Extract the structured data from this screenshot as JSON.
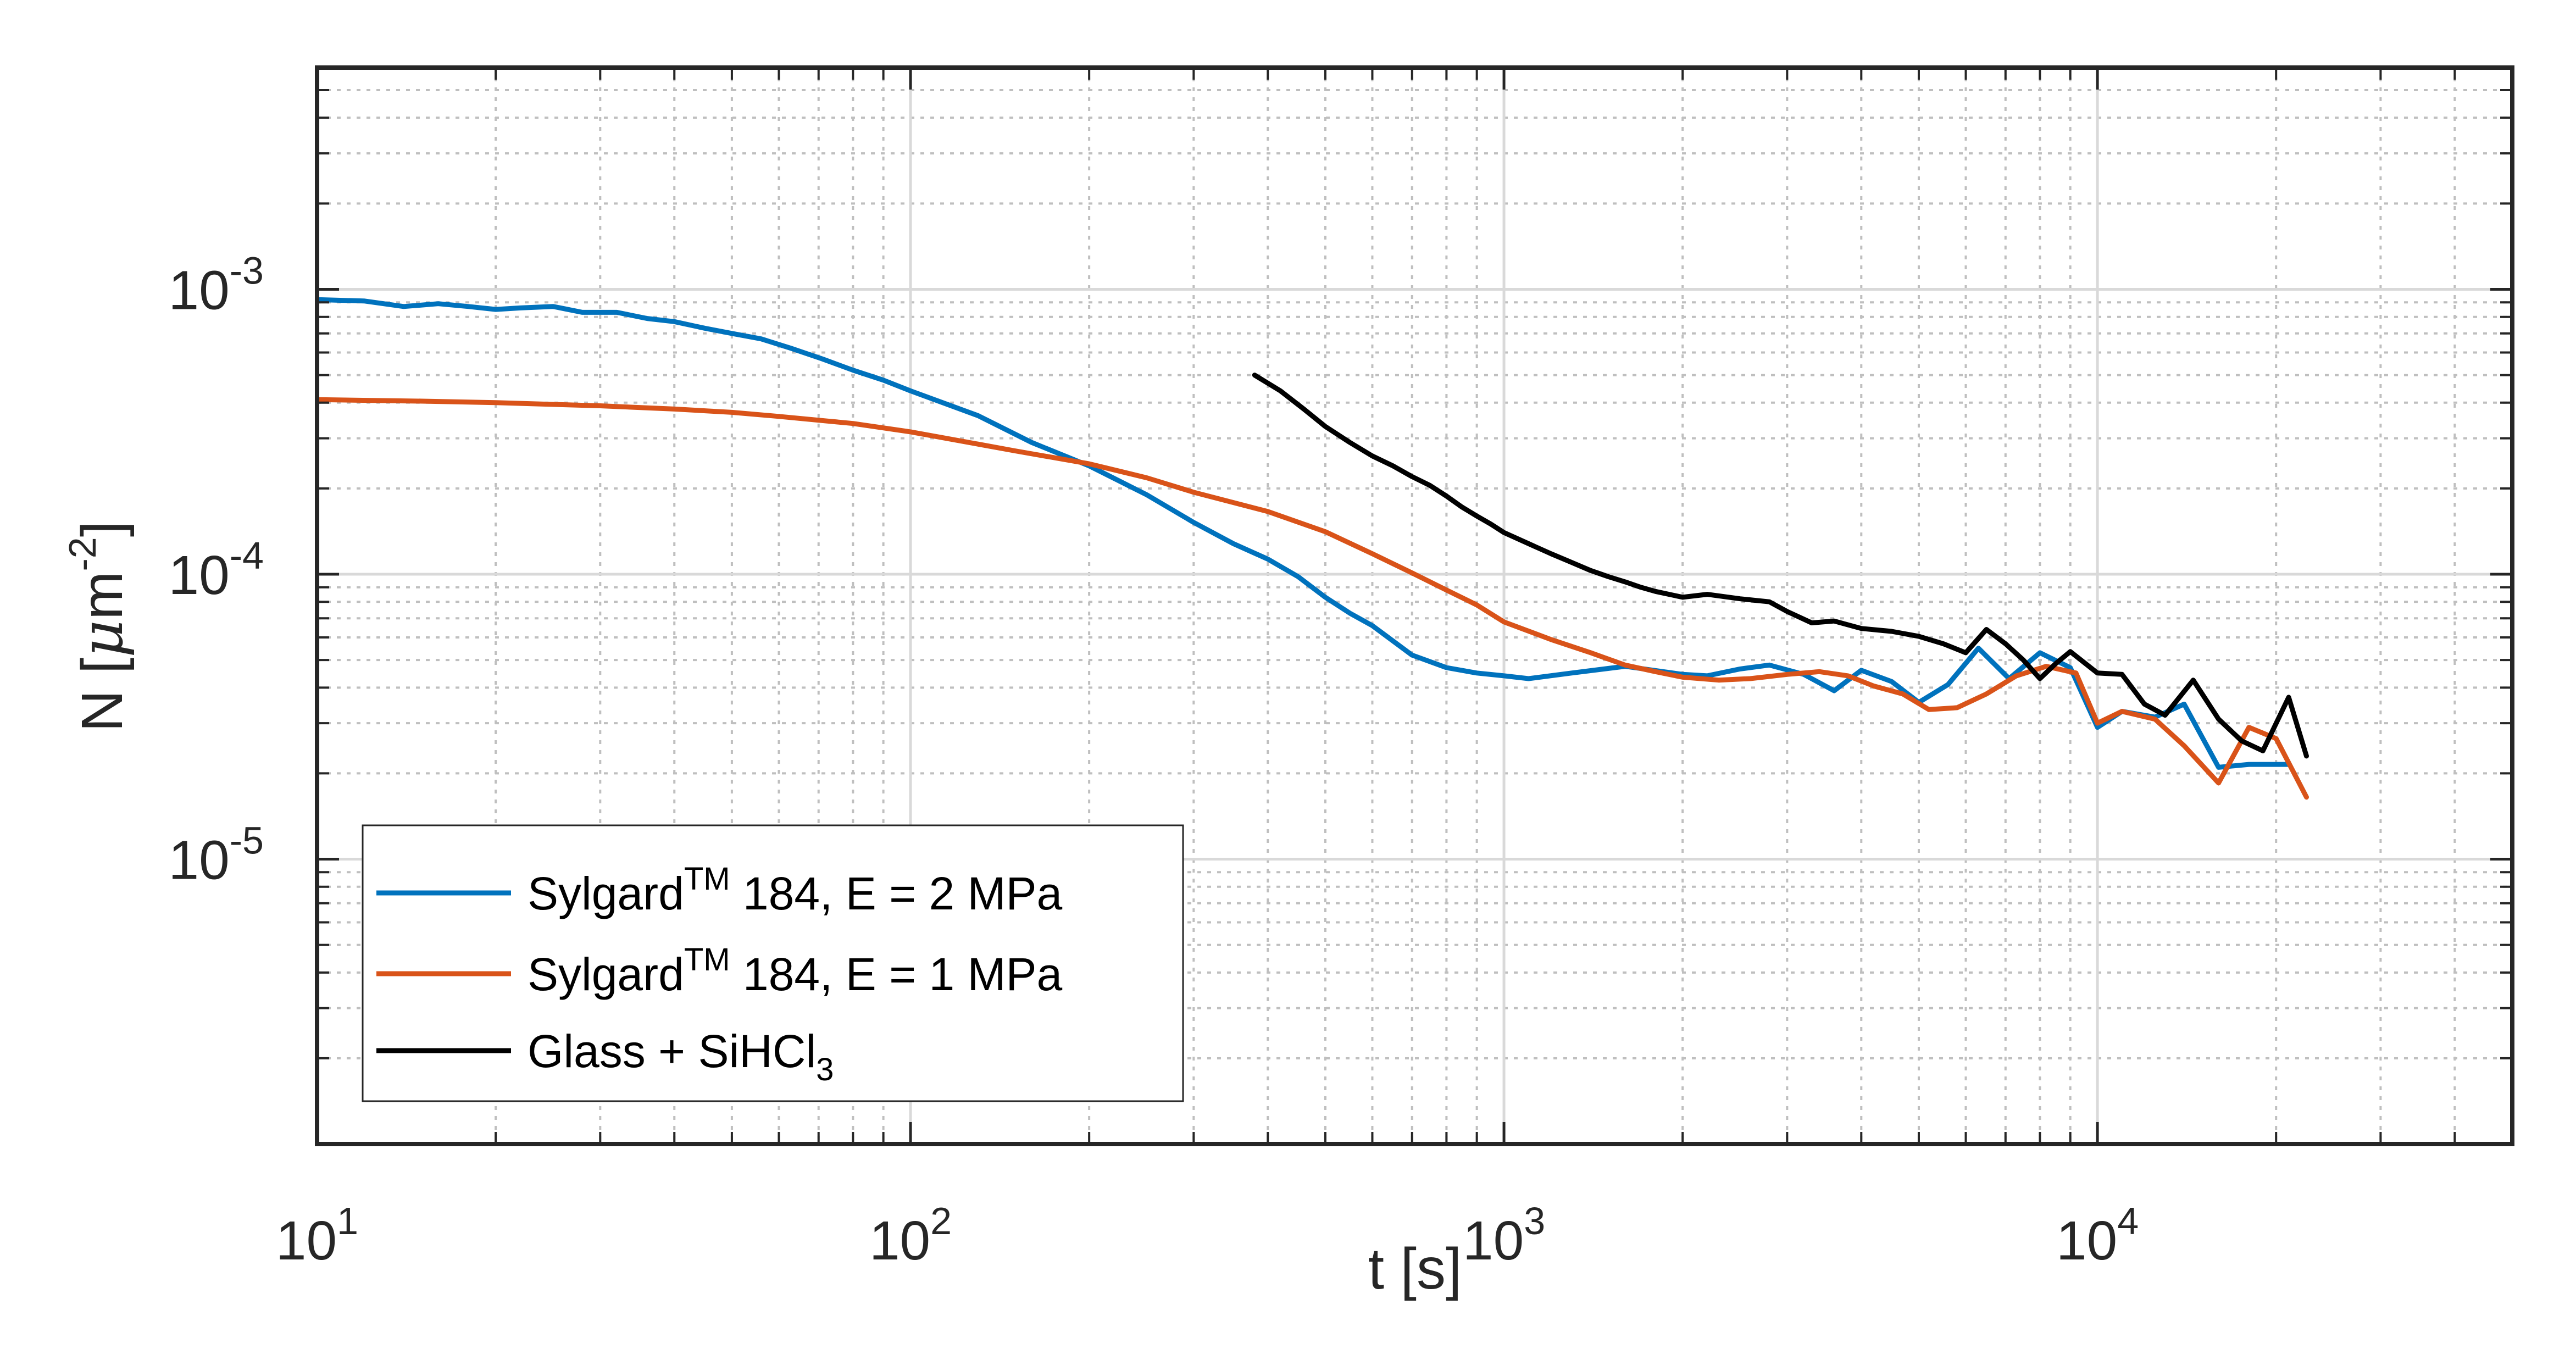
{
  "chart_data": {
    "type": "line",
    "xscale": "log",
    "yscale": "log",
    "xlabel": "t [s]",
    "ylabel": {
      "prefix": "N [",
      "mu": "μ",
      "unit": "m",
      "exp": "-2",
      "suffix": "]"
    },
    "xlim": [
      10,
      50000
    ],
    "ylim": [
      1e-06,
      0.006
    ],
    "grid": true,
    "x_ticks": [
      {
        "value": 10,
        "base": "10",
        "exp": "1"
      },
      {
        "value": 100,
        "base": "10",
        "exp": "2"
      },
      {
        "value": 1000,
        "base": "10",
        "exp": "3"
      },
      {
        "value": 10000,
        "base": "10",
        "exp": "4"
      }
    ],
    "y_ticks": [
      {
        "value": 1e-05,
        "base": "10",
        "exp": "-5"
      },
      {
        "value": 0.0001,
        "base": "10",
        "exp": "-4"
      },
      {
        "value": 0.001,
        "base": "10",
        "exp": "-3"
      }
    ],
    "legend": {
      "placement": "bottom-left"
    },
    "series": [
      {
        "name": "SylgardTM 184, E = 2 MPa",
        "label_parts": [
          "Sylgard",
          "TM",
          " 184, E = 2 MPa"
        ],
        "color": "#0072BD",
        "x": [
          10,
          12,
          14,
          16,
          18,
          20,
          22,
          25,
          28,
          32,
          36,
          40,
          45,
          50,
          56,
          63,
          71,
          80,
          90,
          100,
          130,
          160,
          200,
          250,
          300,
          350,
          400,
          450,
          500,
          550,
          600,
          700,
          800,
          900,
          1000,
          1100,
          1300,
          1600,
          2000,
          2200,
          2500,
          2800,
          3200,
          3600,
          4000,
          4500,
          5000,
          5600,
          6300,
          7100,
          8000,
          9000,
          10000,
          11000,
          12500,
          14000,
          16000,
          18000,
          21000
        ],
        "y": [
          0.00092,
          0.00091,
          0.00087,
          0.00089,
          0.00087,
          0.00085,
          0.00086,
          0.00087,
          0.00083,
          0.00083,
          0.00079,
          0.00077,
          0.00073,
          0.0007,
          0.00067,
          0.00062,
          0.00057,
          0.00052,
          0.00048,
          0.00044,
          0.00036,
          0.00029,
          0.00024,
          0.00019,
          0.000152,
          0.000128,
          0.000113,
          9.8e-05,
          8.3e-05,
          7.3e-05,
          6.6e-05,
          5.2e-05,
          4.7e-05,
          4.5e-05,
          4.4e-05,
          4.3e-05,
          4.5e-05,
          4.75e-05,
          4.45e-05,
          4.4e-05,
          4.65e-05,
          4.8e-05,
          4.45e-05,
          3.9e-05,
          4.6e-05,
          4.2e-05,
          3.55e-05,
          4.1e-05,
          5.5e-05,
          4.3e-05,
          5.3e-05,
          4.7e-05,
          2.9e-05,
          3.3e-05,
          3.15e-05,
          3.5e-05,
          2.1e-05,
          2.15e-05,
          2.15e-05
        ]
      },
      {
        "name": "SylgardTM 184, E = 1 MPa",
        "label_parts": [
          "Sylgard",
          "TM",
          " 184, E = 1 MPa"
        ],
        "color": "#D95319",
        "x": [
          10,
          15,
          20,
          30,
          40,
          50,
          60,
          80,
          100,
          120,
          150,
          200,
          250,
          300,
          400,
          500,
          600,
          700,
          800,
          900,
          1000,
          1200,
          1400,
          1600,
          1800,
          2000,
          2300,
          2600,
          3000,
          3400,
          3800,
          4200,
          4700,
          5200,
          5800,
          6500,
          7300,
          8200,
          9200,
          10000,
          11000,
          12500,
          14000,
          16000,
          18000,
          20000,
          22500
        ],
        "y": [
          0.00041,
          0.000405,
          0.0004,
          0.00039,
          0.00038,
          0.00037,
          0.000358,
          0.000338,
          0.000316,
          0.000295,
          0.000271,
          0.000244,
          0.000218,
          0.000194,
          0.000166,
          0.000141,
          0.000118,
          0.000101,
          8.8e-05,
          7.8e-05,
          6.8e-05,
          5.9e-05,
          5.3e-05,
          4.8e-05,
          4.55e-05,
          4.35e-05,
          4.25e-05,
          4.3e-05,
          4.45e-05,
          4.55e-05,
          4.4e-05,
          4.05e-05,
          3.8e-05,
          3.35e-05,
          3.4e-05,
          3.8e-05,
          4.4e-05,
          4.75e-05,
          4.5e-05,
          3e-05,
          3.3e-05,
          3.1e-05,
          2.5e-05,
          1.85e-05,
          2.9e-05,
          2.65e-05,
          1.65e-05
        ]
      },
      {
        "name": "Glass + SiHCl3",
        "label_parts": [
          "Glass + SiHCl",
          "3",
          ""
        ],
        "color": "#000000",
        "x": [
          380,
          420,
          460,
          500,
          550,
          600,
          650,
          700,
          750,
          800,
          850,
          900,
          950,
          1000,
          1100,
          1200,
          1300,
          1400,
          1500,
          1600,
          1700,
          1800,
          2000,
          2200,
          2500,
          2800,
          3000,
          3300,
          3600,
          4000,
          4500,
          5000,
          5500,
          6000,
          6500,
          7000,
          7500,
          8000,
          8500,
          9000,
          10000,
          11000,
          12000,
          13000,
          14500,
          16000,
          17500,
          19000,
          21000,
          22500
        ],
        "y": [
          0.0005,
          0.00044,
          0.00038,
          0.00033,
          0.00029,
          0.00026,
          0.00024,
          0.00022,
          0.000205,
          0.000188,
          0.000172,
          0.00016,
          0.00015,
          0.00014,
          0.000128,
          0.000118,
          0.00011,
          0.000103,
          9.8e-05,
          9.4e-05,
          9e-05,
          8.7e-05,
          8.3e-05,
          8.5e-05,
          8.2e-05,
          8e-05,
          7.4e-05,
          6.75e-05,
          6.85e-05,
          6.45e-05,
          6.3e-05,
          6.05e-05,
          5.7e-05,
          5.3e-05,
          6.4e-05,
          5.7e-05,
          5e-05,
          4.3e-05,
          4.85e-05,
          5.35e-05,
          4.5e-05,
          4.45e-05,
          3.5e-05,
          3.2e-05,
          4.25e-05,
          3.1e-05,
          2.6e-05,
          2.4e-05,
          3.7e-05,
          2.3e-05
        ]
      }
    ]
  }
}
